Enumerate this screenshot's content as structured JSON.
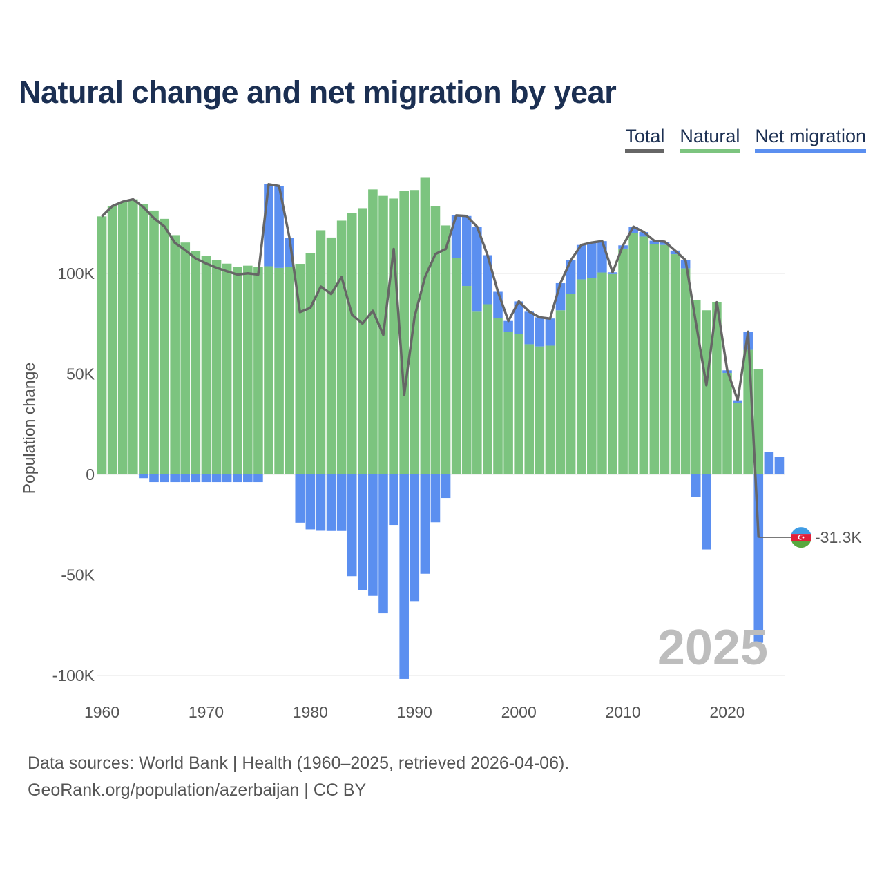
{
  "title": "Natural change and net migration by year",
  "legend": [
    {
      "label": "Total",
      "color": "#666666"
    },
    {
      "label": "Natural",
      "color": "#7cc47f"
    },
    {
      "label": "Net migration",
      "color": "#5b8ff0"
    }
  ],
  "footer": {
    "line1": "Data sources: World Bank | Health (1960–2025, retrieved 2026-04-06).",
    "line2": "GeoRank.org/population/azerbaijan | CC BY"
  },
  "chart_data": {
    "type": "bar",
    "title": "Natural change and net migration by year",
    "ylabel": "Population change",
    "xlabel": "",
    "ylim": [
      -105000,
      150000
    ],
    "xlim": [
      1959.5,
      2025.5
    ],
    "xticks": [
      1960,
      1970,
      1980,
      1990,
      2000,
      2010,
      2020
    ],
    "yticks": [
      -100000,
      -50000,
      0,
      50000,
      100000
    ],
    "ytick_labels": [
      "-100K",
      "-50K",
      "0",
      "50K",
      "100K"
    ],
    "year_label": "2025",
    "end_value_label": "-31.3K",
    "colors": {
      "total": "#666666",
      "natural": "#7cc47f",
      "migration": "#5b8ff0"
    },
    "years": [
      1960,
      1961,
      1962,
      1963,
      1964,
      1965,
      1966,
      1967,
      1968,
      1969,
      1970,
      1971,
      1972,
      1973,
      1974,
      1975,
      1976,
      1977,
      1978,
      1979,
      1980,
      1981,
      1982,
      1983,
      1984,
      1985,
      1986,
      1987,
      1988,
      1989,
      1990,
      1991,
      1992,
      1993,
      1994,
      1995,
      1996,
      1997,
      1998,
      1999,
      2000,
      2001,
      2002,
      2003,
      2004,
      2005,
      2006,
      2007,
      2008,
      2009,
      2010,
      2011,
      2012,
      2013,
      2014,
      2015,
      2016,
      2017,
      2018,
      2019,
      2020,
      2021,
      2022,
      2023,
      2024,
      2025
    ],
    "series": [
      {
        "name": "Natural",
        "values": [
          128400,
          133500,
          135700,
          136900,
          134700,
          131300,
          127200,
          119100,
          115400,
          111300,
          108800,
          106700,
          104900,
          103300,
          103900,
          103300,
          103600,
          102800,
          103100,
          104800,
          110200,
          121500,
          117900,
          126300,
          130100,
          132500,
          141800,
          138600,
          137300,
          141100,
          141500,
          147600,
          133500,
          123900,
          107600,
          93800,
          81000,
          84700,
          77700,
          71100,
          69900,
          64800,
          63700,
          64100,
          81700,
          89800,
          97100,
          97900,
          100500,
          99700,
          112400,
          120100,
          118400,
          114500,
          114200,
          109600,
          102600,
          86700,
          81700,
          85700,
          50500,
          35600,
          62000,
          52400,
          null,
          null
        ]
      },
      {
        "name": "Net migration",
        "values": [
          0,
          0,
          0,
          0,
          -1800,
          -3800,
          -3800,
          -3800,
          -3800,
          -3800,
          -3800,
          -3800,
          -3800,
          -3800,
          -3800,
          -3800,
          40800,
          40700,
          14600,
          -24000,
          -27300,
          -28000,
          -28100,
          -28100,
          -50600,
          -57400,
          -60400,
          -69100,
          -25100,
          -101700,
          -63000,
          -49400,
          -23800,
          -11700,
          21300,
          34800,
          42300,
          24400,
          13200,
          5300,
          16200,
          16200,
          14500,
          13500,
          13500,
          16800,
          17100,
          17500,
          15600,
          900,
          1600,
          3200,
          2200,
          1800,
          1600,
          1800,
          4100,
          -11300,
          -37300,
          0,
          1300,
          1300,
          9000,
          -83700,
          11000,
          8700
        ]
      },
      {
        "name": "Total",
        "values": [
          128400,
          133500,
          135700,
          136900,
          132900,
          127500,
          123400,
          115300,
          111600,
          107500,
          105000,
          102900,
          101100,
          99500,
          100100,
          99500,
          144400,
          143500,
          117700,
          80800,
          82900,
          93500,
          89800,
          98200,
          79500,
          75100,
          81400,
          69500,
          112200,
          39400,
          78500,
          98200,
          109700,
          112200,
          128900,
          128600,
          123300,
          109100,
          90900,
          76400,
          86100,
          81000,
          78200,
          77600,
          95200,
          106600,
          114200,
          115400,
          116100,
          100600,
          114000,
          123300,
          120600,
          116300,
          115800,
          111400,
          106700,
          75400,
          44400,
          85700,
          51800,
          36900,
          71000,
          -31300,
          null,
          null
        ]
      }
    ]
  }
}
